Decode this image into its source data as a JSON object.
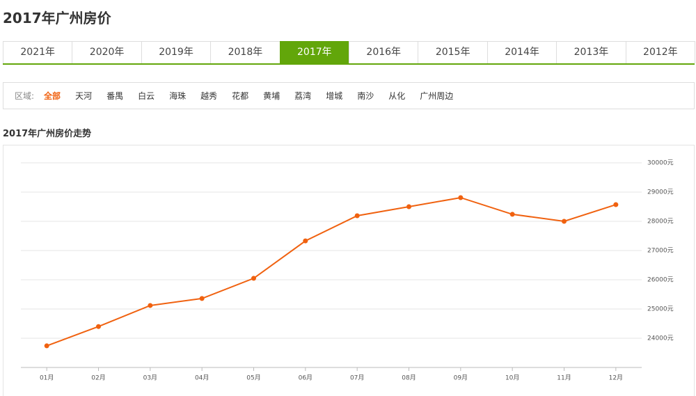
{
  "header": {
    "title": "2017年广州房价"
  },
  "year_tabs": {
    "items": [
      "2021年",
      "2020年",
      "2019年",
      "2018年",
      "2017年",
      "2016年",
      "2015年",
      "2014年",
      "2013年",
      "2012年"
    ],
    "active": 4
  },
  "district_filter": {
    "label": "区域:",
    "items": [
      "全部",
      "天河",
      "番禺",
      "白云",
      "海珠",
      "越秀",
      "花都",
      "黄埔",
      "荔湾",
      "增城",
      "南沙",
      "从化",
      "广州周边"
    ],
    "active": 0
  },
  "chart_data": {
    "type": "line",
    "title": "2017年广州房价走势",
    "categories": [
      "01月",
      "02月",
      "03月",
      "04月",
      "05月",
      "06月",
      "07月",
      "08月",
      "09月",
      "10月",
      "11月",
      "12月"
    ],
    "series": [
      {
        "color": "#f0610f",
        "values": [
          23740,
          24400,
          25120,
          25360,
          26050,
          27330,
          28190,
          28500,
          28810,
          28240,
          28000,
          28570
        ]
      }
    ],
    "ylim": [
      23000,
      30000
    ],
    "yticks": [
      {
        "value": 24000,
        "label": "24000元"
      },
      {
        "value": 25000,
        "label": "25000元"
      },
      {
        "value": 26000,
        "label": "26000元"
      },
      {
        "value": 27000,
        "label": "27000元"
      },
      {
        "value": 28000,
        "label": "28000元"
      },
      {
        "value": 29000,
        "label": "29000元"
      },
      {
        "value": 30000,
        "label": "30000元"
      }
    ],
    "grid": true,
    "y_axis_side": "right"
  }
}
